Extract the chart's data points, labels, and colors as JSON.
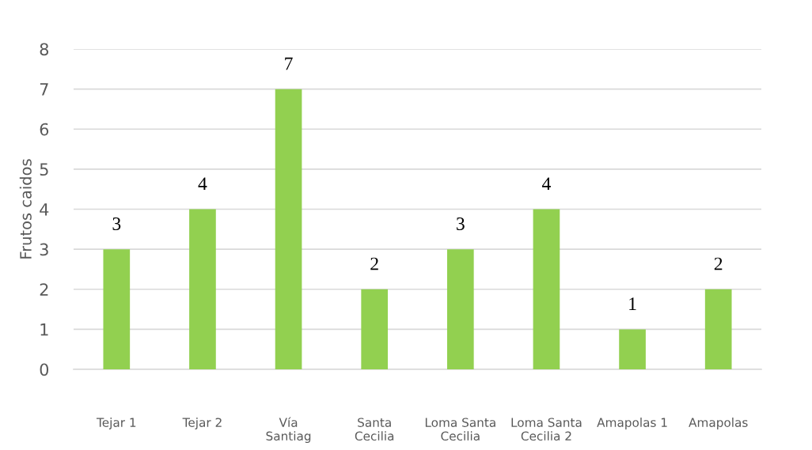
{
  "chart_data": {
    "type": "bar",
    "ylabel": "Frutos caidos",
    "categories": [
      "Tejar 1",
      "Tejar 2",
      "Vía\nSantiag",
      "Santa\nCecilia",
      "Loma Santa\nCecilia",
      "Loma Santa\nCecilia 2",
      "Amapolas 1",
      "Amapolas"
    ],
    "values": [
      3,
      4,
      7,
      2,
      3,
      4,
      1,
      2
    ],
    "color": "#92d050",
    "ylim": [
      0,
      8
    ],
    "yticks": [
      0,
      1,
      2,
      3,
      4,
      5,
      6,
      7,
      8
    ],
    "grid": "y",
    "data_labels": true
  }
}
